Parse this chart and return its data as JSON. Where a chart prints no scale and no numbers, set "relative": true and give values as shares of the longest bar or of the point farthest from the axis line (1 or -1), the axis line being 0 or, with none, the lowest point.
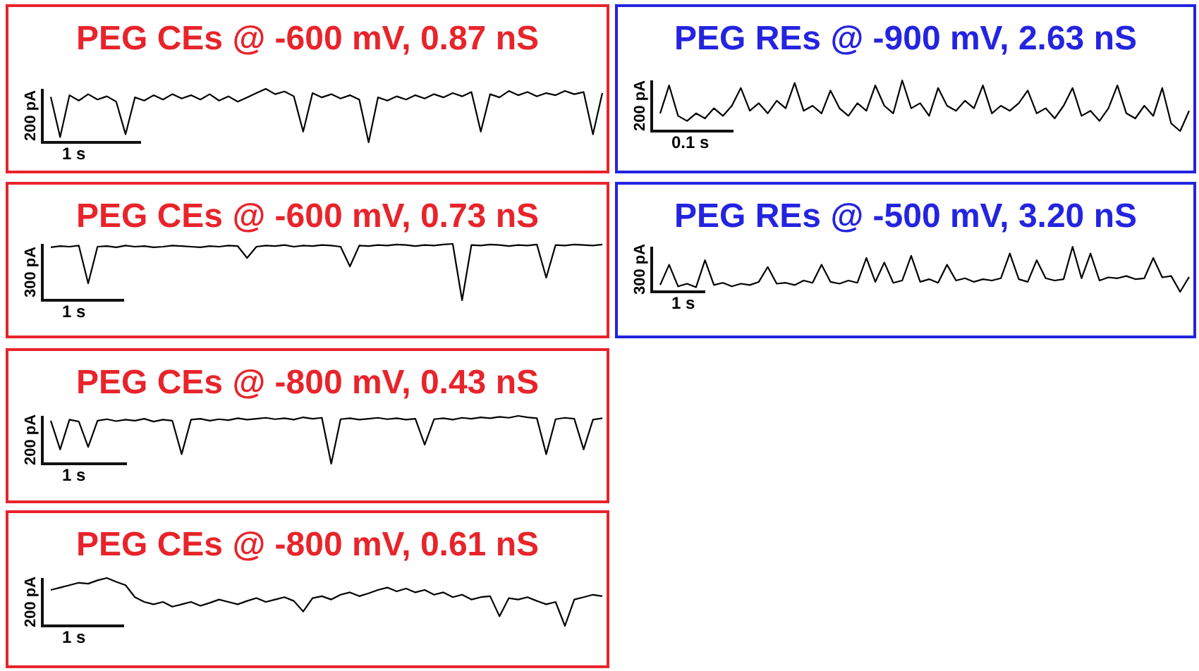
{
  "chart_data": [
    {
      "type": "line",
      "title": "PEG CEs @ -600 mV, 0.87 nS",
      "annotations": [
        "200 pA",
        "1 s"
      ],
      "relative": true,
      "categories": [
        null,
        null,
        null,
        null,
        null,
        null,
        null,
        null,
        null,
        null,
        null,
        null,
        null,
        null,
        null,
        null,
        null,
        null,
        null,
        null,
        null,
        null,
        null,
        null,
        null,
        null,
        null,
        null,
        null,
        null,
        null,
        null,
        null,
        null,
        null,
        null,
        null,
        null,
        null,
        null,
        null,
        null,
        null,
        null,
        null,
        null,
        null,
        null,
        null,
        null,
        null,
        null,
        null,
        null,
        null,
        null,
        null,
        null,
        null,
        null
      ],
      "series": [
        {
          "color": "#000000",
          "values": [
            0.85,
            0.1,
            0.88,
            0.78,
            0.9,
            0.8,
            0.86,
            0.76,
            0.15,
            0.84,
            0.78,
            0.88,
            0.8,
            0.9,
            0.82,
            0.88,
            0.8,
            0.9,
            0.78,
            0.86,
            0.76,
            0.84,
            0.92,
            1,
            0.9,
            0.95,
            0.86,
            0.2,
            0.92,
            0.84,
            0.9,
            0.82,
            0.88,
            0.8,
            0,
            0.84,
            0.78,
            0.86,
            0.8,
            0.88,
            0.82,
            0.9,
            0.84,
            0.92,
            0.86,
            0.94,
            0.2,
            0.9,
            0.84,
            0.96,
            0.88,
            0.94,
            0.86,
            0.92,
            0.88,
            0.96,
            0.9,
            0.94,
            0.15,
            0.92
          ]
        }
      ]
    },
    {
      "type": "line",
      "title": "PEG REs @ -900 mV, 2.63 nS",
      "annotations": [
        "200 pA",
        "0.1 s"
      ],
      "relative": true,
      "categories": [
        null,
        null,
        null,
        null,
        null,
        null,
        null,
        null,
        null,
        null,
        null,
        null,
        null,
        null,
        null,
        null,
        null,
        null,
        null,
        null,
        null,
        null,
        null,
        null,
        null,
        null,
        null,
        null,
        null,
        null,
        null,
        null,
        null,
        null,
        null,
        null,
        null,
        null,
        null,
        null,
        null,
        null,
        null,
        null,
        null,
        null,
        null,
        null,
        null,
        null,
        null,
        null,
        null,
        null,
        null,
        null,
        null,
        null,
        null,
        null
      ],
      "series": [
        {
          "color": "#000000",
          "values": [
            0.35,
            0.9,
            0.3,
            0.2,
            0.35,
            0.25,
            0.45,
            0.3,
            0.5,
            0.85,
            0.4,
            0.55,
            0.35,
            0.6,
            0.45,
            0.95,
            0.4,
            0.5,
            0.35,
            0.8,
            0.45,
            0.3,
            0.55,
            0.4,
            0.9,
            0.5,
            0.35,
            1,
            0.45,
            0.55,
            0.3,
            0.85,
            0.5,
            0.4,
            0.6,
            0.45,
            0.9,
            0.35,
            0.5,
            0.4,
            0.55,
            0.8,
            0.35,
            0.45,
            0.25,
            0.5,
            0.85,
            0.3,
            0.4,
            0.2,
            0.45,
            0.9,
            0.35,
            0.25,
            0.5,
            0.3,
            0.85,
            0.15,
            0,
            0.4
          ]
        }
      ]
    },
    {
      "type": "line",
      "title": "PEG CEs @ -600 mV, 0.73 nS",
      "annotations": [
        "300 pA",
        "1 s"
      ],
      "relative": true,
      "categories": [
        null,
        null,
        null,
        null,
        null,
        null,
        null,
        null,
        null,
        null,
        null,
        null,
        null,
        null,
        null,
        null,
        null,
        null,
        null,
        null,
        null,
        null,
        null,
        null,
        null,
        null,
        null,
        null,
        null,
        null,
        null,
        null,
        null,
        null,
        null,
        null,
        null,
        null,
        null,
        null,
        null,
        null,
        null,
        null,
        null,
        null,
        null,
        null,
        null,
        null,
        null,
        null,
        null,
        null,
        null,
        null,
        null,
        null,
        null,
        null
      ],
      "series": [
        {
          "color": "#000000",
          "values": [
            0.94,
            0.96,
            0.95,
            0.97,
            0.3,
            0.95,
            0.96,
            0.94,
            0.97,
            0.95,
            0.96,
            0.94,
            0.95,
            0.97,
            0.96,
            0.95,
            0.94,
            0.96,
            0.95,
            0.97,
            0.96,
            0.75,
            0.95,
            0.97,
            0.96,
            0.98,
            0.95,
            0.97,
            0.96,
            0.98,
            0.97,
            0.95,
            0.6,
            0.97,
            0.96,
            0.98,
            0.97,
            0.99,
            0.98,
            0.96,
            0.98,
            0.97,
            0.99,
            1,
            0,
            0.98,
            0.97,
            0.99,
            0.98,
            0.96,
            0.98,
            0.97,
            0.99,
            0.4,
            0.98,
            0.97,
            0.99,
            0.98,
            0.97,
            0.99
          ]
        }
      ]
    },
    {
      "type": "line",
      "title": "PEG REs @ -500 mV, 3.20 nS",
      "annotations": [
        "300 pA",
        "1 s"
      ],
      "relative": true,
      "categories": [
        null,
        null,
        null,
        null,
        null,
        null,
        null,
        null,
        null,
        null,
        null,
        null,
        null,
        null,
        null,
        null,
        null,
        null,
        null,
        null,
        null,
        null,
        null,
        null,
        null,
        null,
        null,
        null,
        null,
        null,
        null,
        null,
        null,
        null,
        null,
        null,
        null,
        null,
        null,
        null,
        null,
        null,
        null,
        null,
        null,
        null,
        null,
        null,
        null,
        null,
        null,
        null,
        null,
        null,
        null,
        null,
        null,
        null,
        null,
        null
      ],
      "series": [
        {
          "color": "#000000",
          "values": [
            0.15,
            0.6,
            0.12,
            0.18,
            0.1,
            0.7,
            0.15,
            0.2,
            0.12,
            0.18,
            0.15,
            0.22,
            0.55,
            0.18,
            0.2,
            0.15,
            0.25,
            0.2,
            0.6,
            0.22,
            0.18,
            0.25,
            0.2,
            0.75,
            0.22,
            0.65,
            0.2,
            0.25,
            0.8,
            0.22,
            0.28,
            0.2,
            0.6,
            0.25,
            0.3,
            0.22,
            0.28,
            0.25,
            0.3,
            0.85,
            0.28,
            0.22,
            0.7,
            0.3,
            0.25,
            0.28,
            1,
            0.3,
            0.85,
            0.25,
            0.32,
            0.3,
            0.35,
            0.28,
            0.3,
            0.75,
            0.32,
            0.35,
            0,
            0.33
          ]
        }
      ]
    },
    {
      "type": "line",
      "title": "PEG CEs @ -800 mV, 0.43 nS",
      "annotations": [
        "200 pA",
        "1 s"
      ],
      "relative": true,
      "categories": [
        null,
        null,
        null,
        null,
        null,
        null,
        null,
        null,
        null,
        null,
        null,
        null,
        null,
        null,
        null,
        null,
        null,
        null,
        null,
        null,
        null,
        null,
        null,
        null,
        null,
        null,
        null,
        null,
        null,
        null,
        null,
        null,
        null,
        null,
        null,
        null,
        null,
        null,
        null,
        null,
        null,
        null,
        null,
        null,
        null,
        null,
        null,
        null,
        null,
        null,
        null,
        null,
        null,
        null,
        null,
        null,
        null,
        null,
        null,
        null
      ],
      "series": [
        {
          "color": "#000000",
          "values": [
            0.9,
            0.3,
            0.92,
            0.88,
            0.35,
            0.9,
            0.93,
            0.89,
            0.92,
            0.9,
            0.94,
            0.88,
            0.92,
            0.9,
            0.2,
            0.92,
            0.94,
            0.9,
            0.93,
            0.91,
            0.95,
            0.92,
            0.94,
            0.96,
            0.93,
            0.95,
            0.92,
            0.97,
            0.94,
            0.96,
            0,
            0.93,
            0.95,
            0.92,
            0.94,
            0.96,
            0.93,
            0.95,
            0.92,
            0.94,
            0.4,
            0.93,
            0.95,
            0.92,
            0.96,
            0.94,
            0.97,
            0.95,
            0.98,
            0.96,
            1,
            0.97,
            0.95,
            0.2,
            0.93,
            0.96,
            0.94,
            0.3,
            0.92,
            0.95
          ]
        }
      ]
    },
    {
      "type": "line",
      "title": "PEG CEs @ -800 mV, 0.61 nS",
      "annotations": [
        "200 pA",
        "1 s"
      ],
      "relative": true,
      "categories": [
        null,
        null,
        null,
        null,
        null,
        null,
        null,
        null,
        null,
        null,
        null,
        null,
        null,
        null,
        null,
        null,
        null,
        null,
        null,
        null,
        null,
        null,
        null,
        null,
        null,
        null,
        null,
        null,
        null,
        null,
        null,
        null,
        null,
        null,
        null,
        null,
        null,
        null,
        null,
        null,
        null,
        null,
        null,
        null,
        null,
        null,
        null,
        null,
        null,
        null,
        null,
        null,
        null,
        null,
        null,
        null,
        null,
        null,
        null,
        null
      ],
      "series": [
        {
          "color": "#000000",
          "values": [
            0.75,
            0.8,
            0.85,
            0.9,
            0.88,
            0.95,
            1,
            0.92,
            0.85,
            0.6,
            0.5,
            0.45,
            0.5,
            0.4,
            0.45,
            0.5,
            0.42,
            0.48,
            0.55,
            0.5,
            0.45,
            0.52,
            0.58,
            0.5,
            0.55,
            0.6,
            0.52,
            0.3,
            0.58,
            0.62,
            0.55,
            0.65,
            0.7,
            0.62,
            0.68,
            0.75,
            0.8,
            0.72,
            0.78,
            0.7,
            0.75,
            0.65,
            0.7,
            0.6,
            0.65,
            0.55,
            0.6,
            0.62,
            0.2,
            0.58,
            0.55,
            0.6,
            0.52,
            0.45,
            0.5,
            0,
            0.55,
            0.6,
            0.65,
            0.62
          ]
        }
      ]
    }
  ]
}
